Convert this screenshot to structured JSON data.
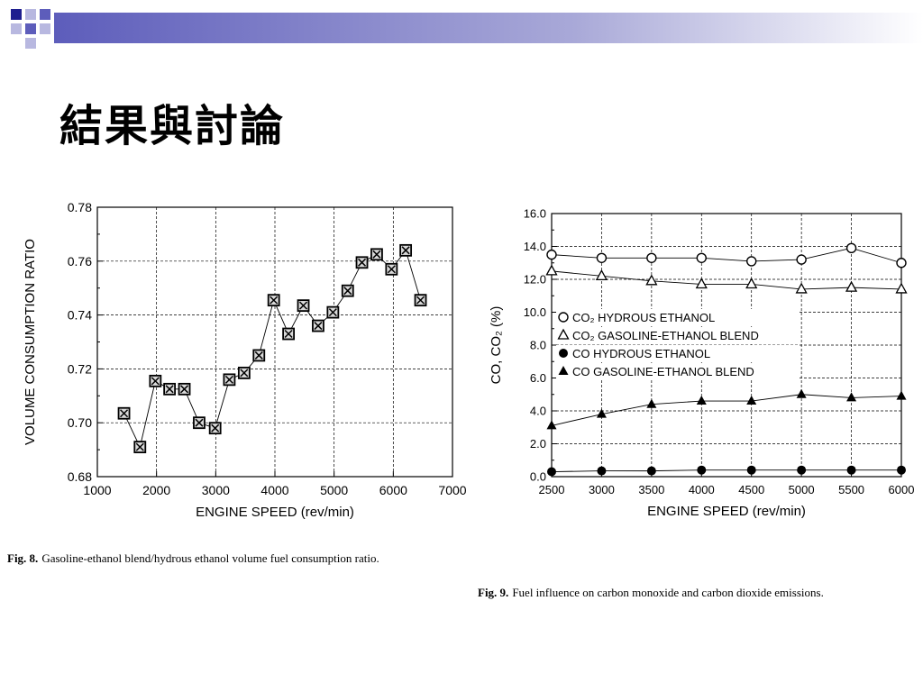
{
  "slide": {
    "title": "結果與討論",
    "theme_colors": {
      "dark_blue": "#1f1f8f",
      "mid_blue": "#5d5dbb",
      "light_blue": "#b8b8e0"
    }
  },
  "captions": [
    {
      "label": "Fig. 8.",
      "text": "Gasoline-ethanol blend/hydrous ethanol volume fuel consumption ratio."
    },
    {
      "label": "Fig. 9.",
      "text": "Fuel influence on carbon monoxide and carbon dioxide emissions."
    }
  ],
  "chart_data": [
    {
      "type": "line",
      "xlabel": "ENGINE SPEED (rev/min)",
      "ylabel": "VOLUME CONSUMPTION RATIO",
      "xlim": [
        1000,
        7000
      ],
      "ylim": [
        0.68,
        0.78
      ],
      "x_ticks": [
        "1000",
        "2000",
        "3000",
        "4000",
        "5000",
        "6000",
        "7000"
      ],
      "y_ticks": [
        "0.68",
        "0.70",
        "0.72",
        "0.74",
        "0.76",
        "0.78"
      ],
      "grid": true,
      "marker": "boxed-x",
      "series": [
        {
          "x": [
            1450,
            1720,
            1980,
            2220,
            2470,
            2720,
            2990,
            3230,
            3480,
            3730,
            3980,
            4230,
            4480,
            4730,
            4980,
            5230,
            5470,
            5720,
            5970,
            6210,
            6460
          ],
          "y": [
            0.7035,
            0.691,
            0.7155,
            0.7125,
            0.7125,
            0.7,
            0.698,
            0.716,
            0.7185,
            0.725,
            0.7455,
            0.733,
            0.7435,
            0.736,
            0.741,
            0.749,
            0.7595,
            0.7625,
            0.757,
            0.764,
            0.7455
          ]
        }
      ]
    },
    {
      "type": "line",
      "xlabel": "ENGINE SPEED (rev/min)",
      "ylabel": "CO, CO₂ (%)",
      "xlim": [
        2500,
        6000
      ],
      "ylim": [
        0,
        16
      ],
      "x_ticks": [
        "2500",
        "3000",
        "3500",
        "4000",
        "4500",
        "5000",
        "5500",
        "6000"
      ],
      "y_ticks": [
        "0.0",
        "2.0",
        "4.0",
        "6.0",
        "8.0",
        "10.0",
        "12.0",
        "14.0",
        "16.0"
      ],
      "grid": true,
      "legend": "center-left",
      "x": [
        2500,
        3000,
        3500,
        4000,
        4500,
        5000,
        5500,
        6000
      ],
      "series": [
        {
          "name": "CO₂ HYDROUS ETHANOL",
          "marker": "open-circle",
          "values": [
            13.5,
            13.3,
            13.3,
            13.3,
            13.1,
            13.2,
            13.9,
            13.0
          ]
        },
        {
          "name": "CO₂ GASOLINE-ETHANOL BLEND",
          "marker": "open-triangle",
          "values": [
            12.5,
            12.2,
            11.9,
            11.7,
            11.7,
            11.4,
            11.5,
            11.4
          ]
        },
        {
          "name": "CO  HYDROUS ETHANOL",
          "marker": "filled-circle",
          "values": [
            0.3,
            0.35,
            0.35,
            0.4,
            0.4,
            0.4,
            0.4,
            0.4
          ]
        },
        {
          "name": "CO  GASOLINE-ETHANOL BLEND",
          "marker": "filled-triangle",
          "values": [
            3.1,
            3.8,
            4.4,
            4.6,
            4.6,
            5.0,
            4.8,
            4.9
          ]
        }
      ]
    }
  ]
}
